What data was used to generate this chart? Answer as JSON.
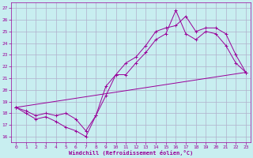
{
  "xlabel": "Windchill (Refroidissement éolien,°C)",
  "bg_color": "#c8eef0",
  "grid_color": "#b0b0cc",
  "line_color": "#990099",
  "xlim_min": -0.5,
  "xlim_max": 23.5,
  "ylim_min": 15.5,
  "ylim_max": 27.5,
  "xticks": [
    0,
    1,
    2,
    3,
    4,
    5,
    6,
    7,
    8,
    9,
    10,
    11,
    12,
    13,
    14,
    15,
    16,
    17,
    18,
    19,
    20,
    21,
    22,
    23
  ],
  "yticks": [
    16,
    17,
    18,
    19,
    20,
    21,
    22,
    23,
    24,
    25,
    26,
    27
  ],
  "series1_x": [
    0,
    1,
    2,
    3,
    4,
    5,
    6,
    7,
    8,
    9,
    10,
    11,
    12,
    13,
    14,
    15,
    16,
    17,
    18,
    19,
    20,
    21,
    22,
    23
  ],
  "series1_y": [
    18.5,
    18.0,
    17.5,
    17.7,
    17.3,
    16.8,
    16.5,
    16.0,
    17.8,
    19.5,
    21.3,
    21.3,
    22.3,
    23.2,
    24.3,
    24.8,
    26.8,
    24.8,
    24.3,
    25.0,
    24.8,
    23.8,
    22.3,
    21.5
  ],
  "series2_x": [
    0,
    1,
    2,
    3,
    4,
    5,
    6,
    7,
    8,
    9,
    10,
    11,
    12,
    13,
    14,
    15,
    16,
    17,
    18,
    19,
    20,
    21,
    22,
    23
  ],
  "series2_y": [
    18.5,
    18.2,
    17.8,
    18.0,
    17.8,
    18.0,
    17.5,
    16.5,
    17.8,
    20.3,
    21.3,
    22.3,
    22.8,
    23.8,
    25.0,
    25.3,
    25.5,
    26.3,
    25.0,
    25.3,
    25.3,
    24.8,
    23.0,
    21.5
  ],
  "series3_x": [
    0,
    23
  ],
  "series3_y": [
    18.5,
    21.5
  ]
}
